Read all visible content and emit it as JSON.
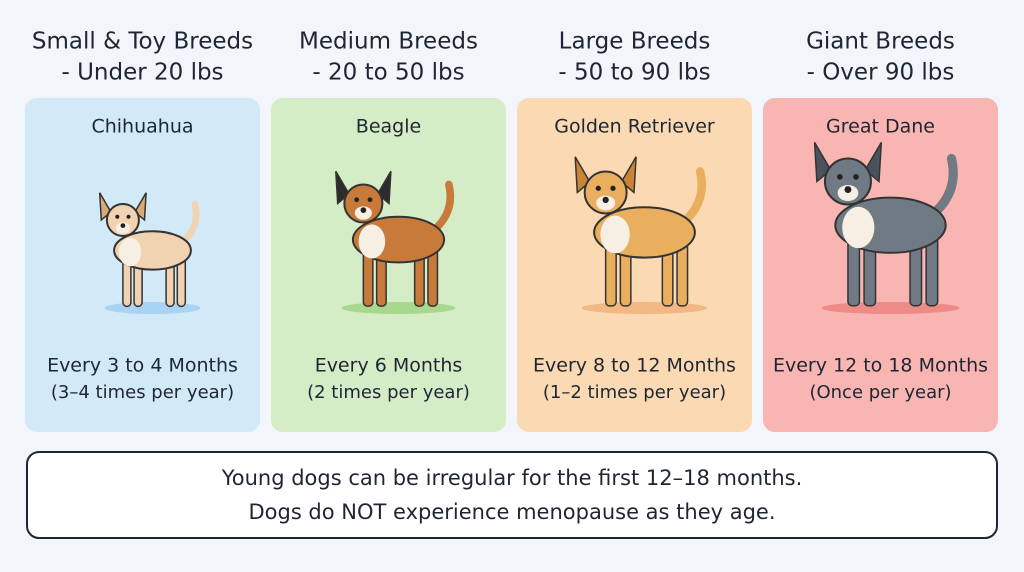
{
  "columns": [
    {
      "title": "Small & Toy Breeds",
      "weight": "- Under 20 lbs",
      "breed": "Chihuahua",
      "frequency": "Every 3 to 4 Months",
      "per_year": "(3–4 times per year)"
    },
    {
      "title": "Medium Breeds",
      "weight": "- 20 to 50 lbs",
      "breed": "Beagle",
      "frequency": "Every 6 Months",
      "per_year": "(2 times per year)"
    },
    {
      "title": "Large Breeds",
      "weight": "- 50 to 90 lbs",
      "breed": "Golden Retriever",
      "frequency": "Every 8 to 12 Months",
      "per_year": "(1–2 times per year)"
    },
    {
      "title": "Giant Breeds",
      "weight": "- Over 90 lbs",
      "breed": "Great Dane",
      "frequency": "Every 12 to 18 Months",
      "per_year": "(Once per year)"
    }
  ],
  "note": {
    "lines": [
      "Young dogs can be irregular for the first 12–18 months.",
      "Dogs do NOT experience menopause as they age."
    ]
  }
}
